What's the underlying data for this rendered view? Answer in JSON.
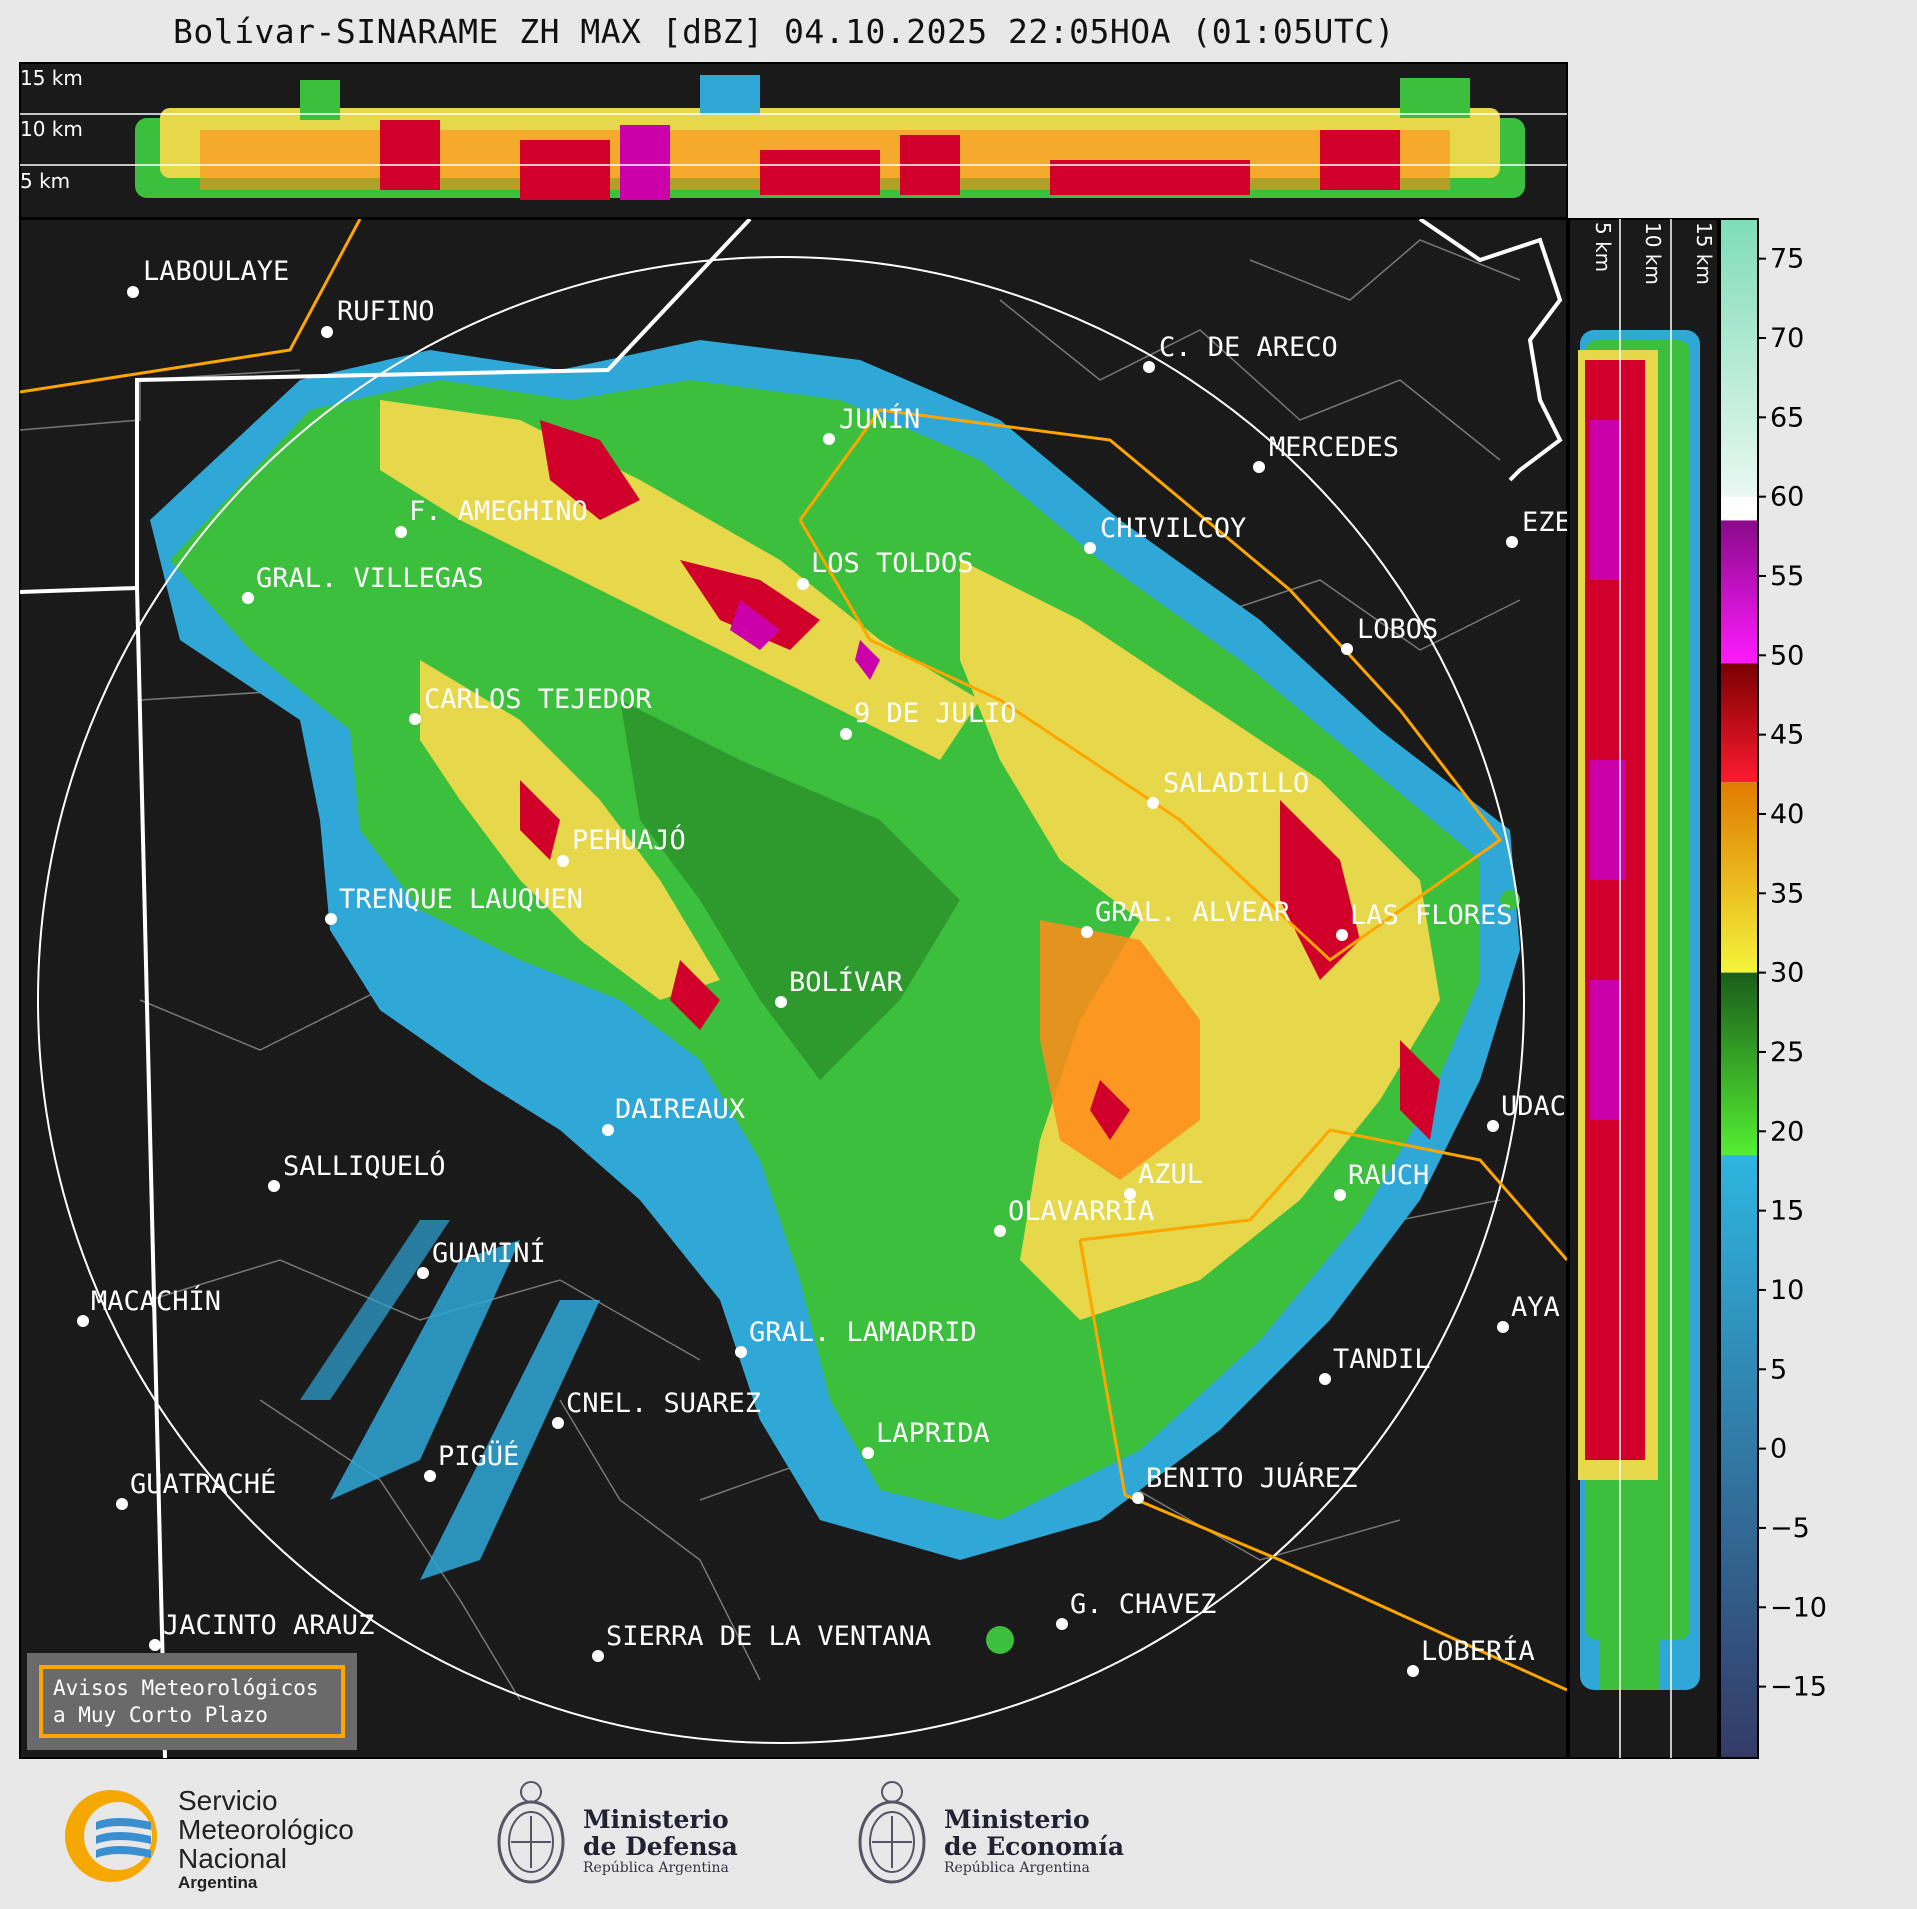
{
  "title": "Bolívar-SINARAME ZH MAX [dBZ] 04.10.2025 22:05HOA (01:05UTC)",
  "top_profile": {
    "altitude_labels": [
      "15 km",
      "10 km",
      "5 km"
    ]
  },
  "side_profile": {
    "altitude_labels": [
      "5 km",
      "10 km",
      "15 km"
    ]
  },
  "colorbar": {
    "ticks": [
      "75",
      "70",
      "65",
      "60",
      "55",
      "50",
      "45",
      "40",
      "35",
      "30",
      "25",
      "20",
      "15",
      "10",
      "5",
      "0",
      "−5",
      "−10",
      "−15"
    ]
  },
  "cities": [
    {
      "name": "LABOULAYE"
    },
    {
      "name": "RUFINO"
    },
    {
      "name": "C. DE ARECO"
    },
    {
      "name": "JUNÍN"
    },
    {
      "name": "MERCEDES"
    },
    {
      "name": "F. AMEGHINO"
    },
    {
      "name": "CHIVILCOY"
    },
    {
      "name": "EZE"
    },
    {
      "name": "GRAL. VILLEGAS"
    },
    {
      "name": "LOS TOLDOS"
    },
    {
      "name": "LOBOS"
    },
    {
      "name": "CARLOS TEJEDOR"
    },
    {
      "name": "9 DE JULIO"
    },
    {
      "name": "SALADILLO"
    },
    {
      "name": "PEHUAJÓ"
    },
    {
      "name": "TRENQUE LAUQUEN"
    },
    {
      "name": "GRAL. ALVEAR"
    },
    {
      "name": "LAS FLORES"
    },
    {
      "name": "BOLÍVAR"
    },
    {
      "name": "DAIREAUX"
    },
    {
      "name": "UDAC"
    },
    {
      "name": "SALLIQUELÓ"
    },
    {
      "name": "AZUL"
    },
    {
      "name": "RAUCH"
    },
    {
      "name": "OLAVARRÍA"
    },
    {
      "name": "GUAMINÍ"
    },
    {
      "name": "MACACHÍN"
    },
    {
      "name": "AYA"
    },
    {
      "name": "GRAL. LAMADRID"
    },
    {
      "name": "TANDIL"
    },
    {
      "name": "CNEL. SUAREZ"
    },
    {
      "name": "LAPRIDA"
    },
    {
      "name": "PIGÜÉ"
    },
    {
      "name": "GUATRACHÉ"
    },
    {
      "name": "BENITO JUÁREZ"
    },
    {
      "name": "G. CHAVEZ"
    },
    {
      "name": "JACINTO ARAUZ"
    },
    {
      "name": "SIERRA DE LA VENTANA"
    },
    {
      "name": "LOBERÍA"
    }
  ],
  "aviso": {
    "line1": "Avisos Meteorológicos",
    "line2": "a Muy Corto Plazo"
  },
  "logos": {
    "smn": {
      "line1": "Servicio",
      "line2": "Meteorológico",
      "line3": "Nacional",
      "line4": "Argentina"
    },
    "defensa": {
      "line1": "Ministerio",
      "line2": "de Defensa",
      "line3": "República Argentina"
    },
    "economia": {
      "line1": "Ministerio",
      "line2": "de Economía",
      "line3": "República Argentina"
    }
  },
  "colors": {
    "background": "#e8e8e8",
    "map_bg": "#1a1a1a",
    "province_border": "#ffffff",
    "warning_border": "#ffa500",
    "district_border": "#777777"
  }
}
